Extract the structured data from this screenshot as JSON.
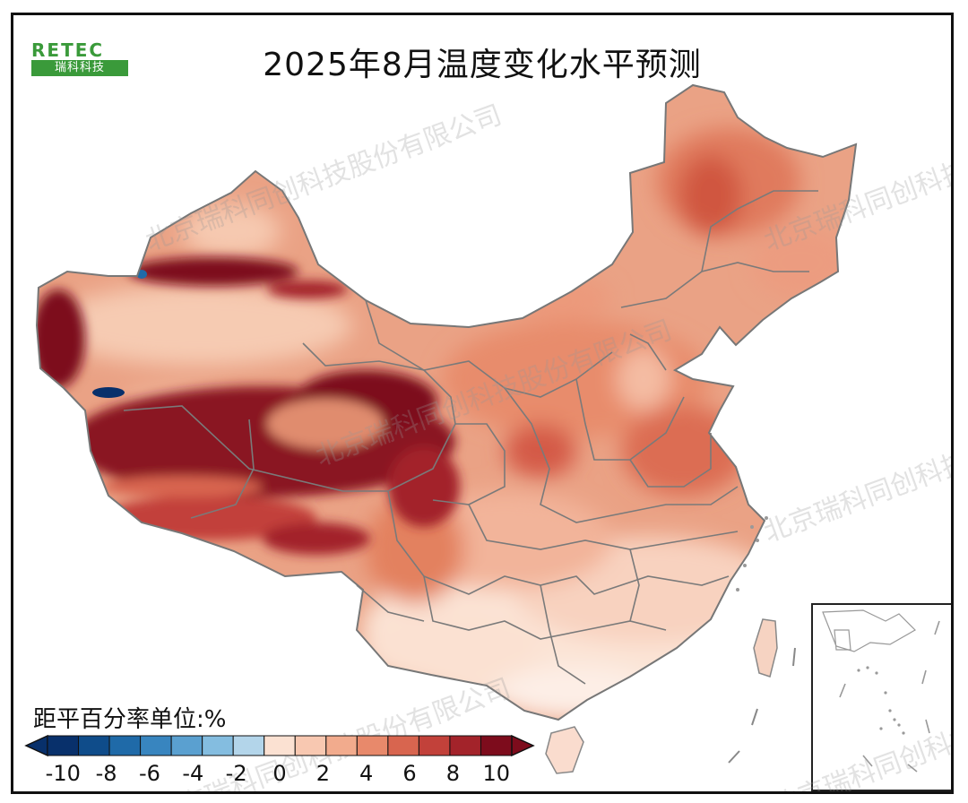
{
  "title": "2025年8月温度变化水平预测",
  "logo": {
    "top": "RETEC",
    "bottom": "瑞科科技"
  },
  "watermark": "北京瑞科同创科技股份有限公司",
  "legend": {
    "unit_label": "距平百分率单位:%",
    "ticks": [
      "-10",
      "-8",
      "-6",
      "-4",
      "-2",
      "0",
      "2",
      "4",
      "6",
      "8",
      "10"
    ],
    "colors": [
      "#08306b",
      "#0f4c8a",
      "#1f6aa8",
      "#3885bf",
      "#5aa0d0",
      "#84bde0",
      "#b3d5ea",
      "#fbe1d2",
      "#f8c8b1",
      "#f2ab8d",
      "#e8896b",
      "#d8654f",
      "#c2413a",
      "#a3232a",
      "#7d0c1c"
    ]
  },
  "colors": {
    "frame": "#111111",
    "border": "#7a7a7a",
    "land_base": "#e99a7e"
  }
}
